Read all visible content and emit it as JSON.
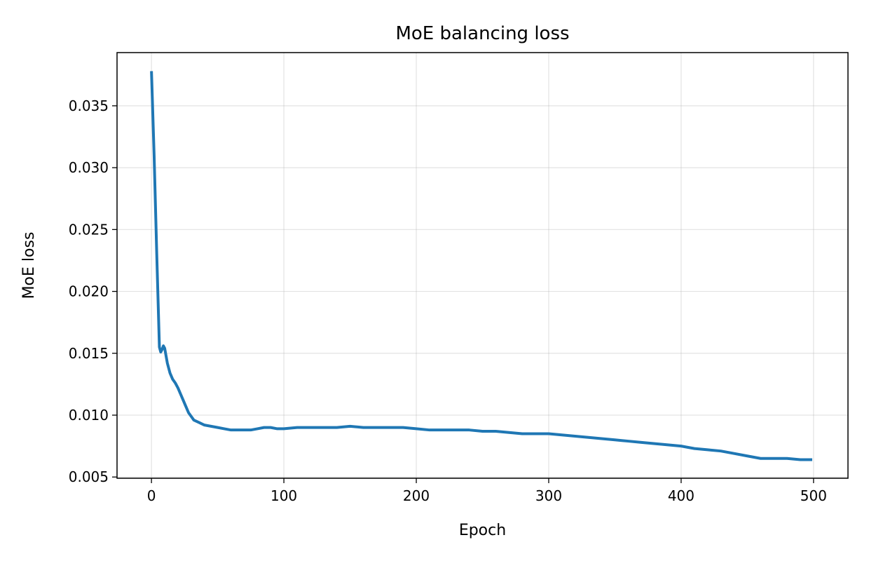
{
  "chart_data": {
    "type": "line",
    "title": "MoE balancing loss",
    "xlabel": "Epoch",
    "ylabel": "MoE loss",
    "xlim": [
      -26,
      526
    ],
    "ylim": [
      0.0049,
      0.0393
    ],
    "xticks": [
      0,
      100,
      200,
      300,
      400,
      500
    ],
    "xtick_labels": [
      "0",
      "100",
      "200",
      "300",
      "400",
      "500"
    ],
    "yticks": [
      0.005,
      0.01,
      0.015,
      0.02,
      0.025,
      0.03,
      0.035
    ],
    "ytick_labels": [
      "0.005",
      "0.010",
      "0.015",
      "0.020",
      "0.025",
      "0.030",
      "0.035"
    ],
    "grid": true,
    "series": [
      {
        "color": "#1f77b4",
        "x": [
          0,
          2,
          4,
          6,
          7,
          8,
          9,
          10,
          11,
          12,
          14,
          16,
          18,
          20,
          22,
          24,
          26,
          28,
          30,
          32,
          34,
          36,
          40,
          45,
          50,
          55,
          60,
          65,
          70,
          75,
          80,
          85,
          90,
          95,
          100,
          110,
          120,
          130,
          140,
          150,
          160,
          170,
          180,
          190,
          200,
          210,
          220,
          230,
          240,
          250,
          260,
          270,
          280,
          290,
          300,
          310,
          320,
          330,
          340,
          350,
          360,
          370,
          380,
          390,
          400,
          410,
          420,
          430,
          440,
          450,
          460,
          470,
          480,
          490,
          499
        ],
        "y": [
          0.0378,
          0.031,
          0.023,
          0.0155,
          0.0151,
          0.0153,
          0.0156,
          0.0154,
          0.0148,
          0.0142,
          0.0134,
          0.0129,
          0.0126,
          0.0122,
          0.0117,
          0.0112,
          0.0107,
          0.0102,
          0.0099,
          0.0096,
          0.0095,
          0.0094,
          0.0092,
          0.0091,
          0.009,
          0.0089,
          0.0088,
          0.0088,
          0.0088,
          0.0088,
          0.0089,
          0.009,
          0.009,
          0.0089,
          0.0089,
          0.009,
          0.009,
          0.009,
          0.009,
          0.0091,
          0.009,
          0.009,
          0.009,
          0.009,
          0.0089,
          0.0088,
          0.0088,
          0.0088,
          0.0088,
          0.0087,
          0.0087,
          0.0086,
          0.0085,
          0.0085,
          0.0085,
          0.0084,
          0.0083,
          0.0082,
          0.0081,
          0.008,
          0.0079,
          0.0078,
          0.0077,
          0.0076,
          0.0075,
          0.0073,
          0.0072,
          0.0071,
          0.0069,
          0.0067,
          0.0065,
          0.0065,
          0.0065,
          0.0064,
          0.0064
        ]
      }
    ]
  }
}
